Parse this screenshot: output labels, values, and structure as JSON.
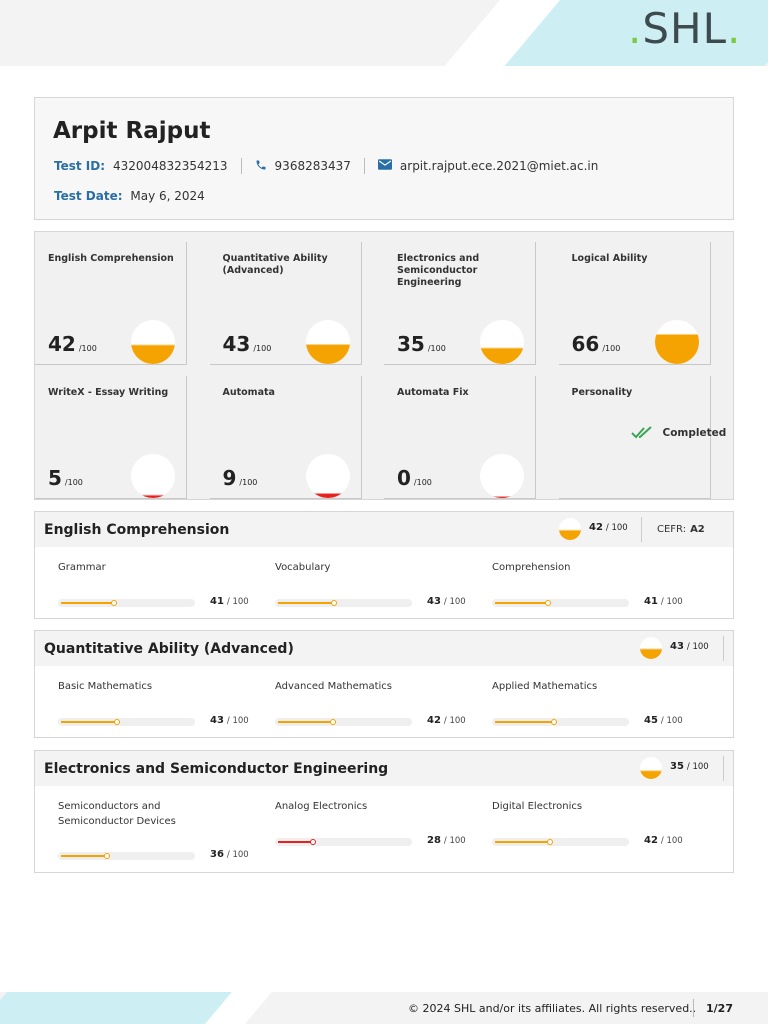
{
  "brand": {
    "logo_text": "SHL",
    "logo_dot": "."
  },
  "candidate": {
    "name": "Arpit Rajput",
    "test_id_label": "Test ID:",
    "test_id": "432004832354213",
    "phone": "9368283437",
    "email": "arpit.rajput.ece.2021@miet.ac.in",
    "test_date_label": "Test Date:",
    "test_date": "May 6, 2024"
  },
  "tiles": [
    {
      "name": "English Comprehension",
      "score": "42",
      "out_of": "/100",
      "level": 0.42,
      "color": "#f5a300"
    },
    {
      "name": "Quantitative Ability (Advanced)",
      "score": "43",
      "out_of": "/100",
      "level": 0.43,
      "color": "#f5a300"
    },
    {
      "name": "Electronics and Semiconductor Engineering",
      "score": "35",
      "out_of": "/100",
      "level": 0.35,
      "color": "#f5a300"
    },
    {
      "name": "Logical Ability",
      "score": "66",
      "out_of": "/100",
      "level": 0.66,
      "color": "#f5a300"
    },
    {
      "name": "WriteX - Essay Writing",
      "score": "5",
      "out_of": "/100",
      "level": 0.05,
      "color": "#e8201e"
    },
    {
      "name": "Automata",
      "score": "9",
      "out_of": "/100",
      "level": 0.09,
      "color": "#e8201e"
    },
    {
      "name": "Automata Fix",
      "score": "0",
      "out_of": "/100",
      "level": 0.02,
      "color": "#e8201e"
    },
    {
      "name": "Personality",
      "status": "Completed"
    }
  ],
  "sections": [
    {
      "title": "English Comprehension",
      "score": "42",
      "out_of": "/ 100",
      "level": 0.42,
      "cefr_label": "CEFR:",
      "cefr_value": "A2",
      "subs": [
        {
          "name": "Grammar",
          "score": "41",
          "out_of": "/ 100",
          "level": 0.41,
          "color": "#f5a300"
        },
        {
          "name": "Vocabulary",
          "score": "43",
          "out_of": "/ 100",
          "level": 0.43,
          "color": "#f5a300"
        },
        {
          "name": "Comprehension",
          "score": "41",
          "out_of": "/ 100",
          "level": 0.41,
          "color": "#f5a300"
        }
      ]
    },
    {
      "title": "Quantitative Ability (Advanced)",
      "score": "43",
      "out_of": "/ 100",
      "level": 0.43,
      "subs": [
        {
          "name": "Basic Mathematics",
          "score": "43",
          "out_of": "/ 100",
          "level": 0.43,
          "color": "#f5a300"
        },
        {
          "name": "Advanced Mathematics",
          "score": "42",
          "out_of": "/ 100",
          "level": 0.42,
          "color": "#f5a300"
        },
        {
          "name": "Applied Mathematics",
          "score": "45",
          "out_of": "/ 100",
          "level": 0.45,
          "color": "#f5a300"
        }
      ]
    },
    {
      "title": "Electronics and Semiconductor Engineering",
      "score": "35",
      "out_of": "/ 100",
      "level": 0.35,
      "subs": [
        {
          "name": "Semiconductors and Semiconductor Devices",
          "score": "36",
          "out_of": "/ 100",
          "level": 0.36,
          "color": "#f5a300"
        },
        {
          "name": "Analog Electronics",
          "score": "28",
          "out_of": "/ 100",
          "level": 0.28,
          "color": "#e8201e"
        },
        {
          "name": "Digital Electronics",
          "score": "42",
          "out_of": "/ 100",
          "level": 0.42,
          "color": "#f5a300"
        }
      ]
    }
  ],
  "footer": {
    "copyright": "© 2024 SHL and/or its affiliates. All rights reserved..",
    "page": "1/27"
  },
  "icons": {
    "phone": "phone-icon",
    "email": "email-icon",
    "check": "double-check-icon"
  }
}
